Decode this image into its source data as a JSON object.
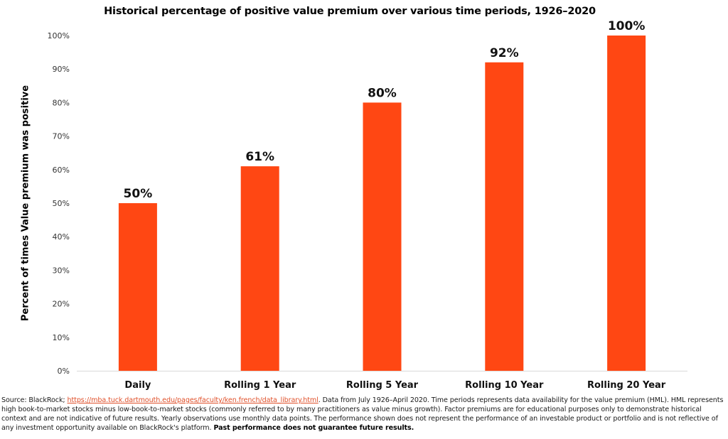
{
  "chart_data": {
    "type": "bar",
    "title": "Historical percentage of positive value premium over various time periods, 1926–2020",
    "xlabel": "",
    "ylabel": "Percent of times Value premium was positive",
    "categories": [
      "Daily",
      "Rolling 1 Year",
      "Rolling 5 Year",
      "Rolling 10 Year",
      "Rolling 20 Year"
    ],
    "values": [
      50,
      61,
      80,
      92,
      100
    ],
    "data_labels": [
      "50%",
      "61%",
      "80%",
      "92%",
      "100%"
    ],
    "ylim": [
      0,
      100
    ],
    "yticks": [
      0,
      10,
      20,
      30,
      40,
      50,
      60,
      70,
      80,
      90,
      100
    ],
    "ytick_labels": [
      "0%",
      "10%",
      "20%",
      "30%",
      "40%",
      "50%",
      "60%",
      "70%",
      "80%",
      "90%",
      "100%"
    ],
    "grid": false,
    "legend": "none",
    "bar_color": "#ff4713"
  },
  "footer": {
    "source_prefix": "Source: BlackRock; ",
    "source_link": "https://mba.tuck.dartmouth.edu/pages/faculty/ken.french/data_library.html",
    "body": ". Data from July 1926–April 2020. Time periods represents data availability for the value premium (HML). HML represents high book-to-market stocks minus low-book-to-market stocks (commonly referred to by many practitioners as value minus growth). Factor premiums are for educational purposes only to demonstrate historical context and are not indicative of future results. Yearly observations use monthly data points. The performance shown does not represent the performance of an investable product or portfolio and is not reflective of any investment opportunity available on BlackRock's platform. ",
    "disclaimer_bold": "Past performance does not guarantee future results."
  }
}
